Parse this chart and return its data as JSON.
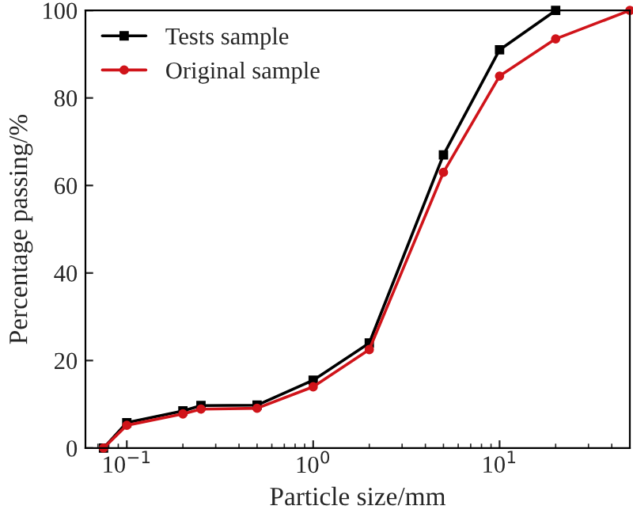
{
  "chart_data": {
    "type": "line",
    "xlabel": "Particle size/mm",
    "ylabel": "Percentage passing/%",
    "log": "x",
    "xlim": [
      0.06,
      50
    ],
    "xticks": [
      {
        "value": 0.1,
        "label": "10$^{−1}$"
      },
      {
        "value": 1,
        "label": "10$^{0}$"
      },
      {
        "value": 10,
        "label": "10$^{1}$"
      }
    ],
    "ylim": [
      0,
      100
    ],
    "yticks": [
      0,
      20,
      40,
      60,
      80,
      100
    ],
    "grid": false,
    "legend": "top left",
    "line_style": "solid",
    "series": [
      {
        "name": "Tests sample",
        "color": "#000000",
        "marker": "square",
        "x": [
          0.075,
          0.1,
          0.2,
          0.25,
          0.5,
          1,
          2,
          5,
          10,
          20
        ],
        "values": [
          0,
          5.8,
          8.5,
          9.7,
          9.8,
          15.5,
          24,
          67,
          91,
          100
        ]
      },
      {
        "name": "Original sample",
        "color": "#d0141a",
        "marker": "circle",
        "x": [
          0.075,
          0.1,
          0.2,
          0.25,
          0.5,
          1,
          2,
          5,
          10,
          20,
          50
        ],
        "values": [
          0,
          5.2,
          7.8,
          8.9,
          9.1,
          14,
          22.5,
          63,
          85,
          93.5,
          100
        ]
      }
    ]
  }
}
